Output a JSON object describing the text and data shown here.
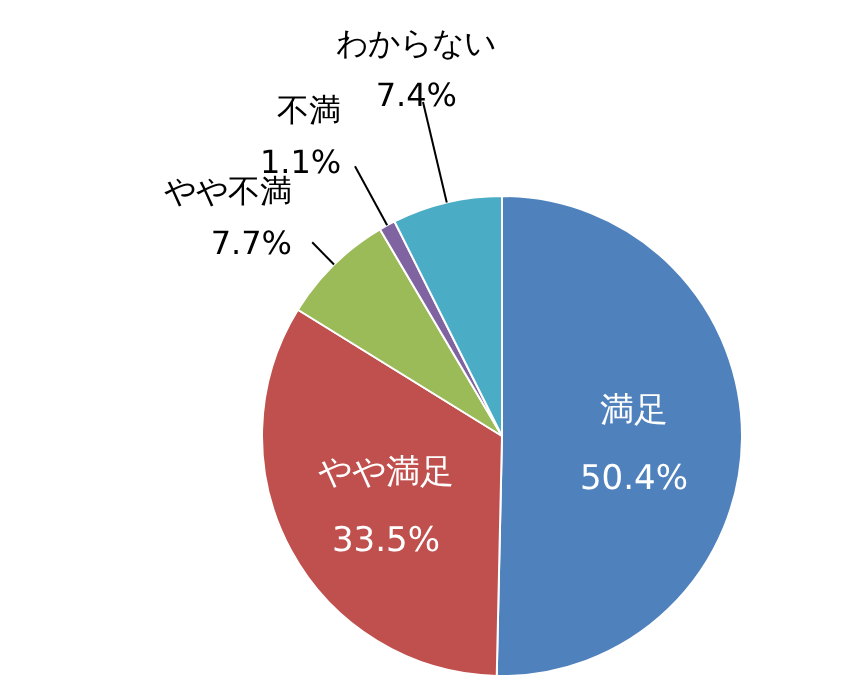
{
  "chart_data": {
    "type": "pie",
    "categories": [
      "満足",
      "やや満足",
      "やや不満",
      "不満",
      "わからない"
    ],
    "values": [
      50.4,
      33.5,
      7.7,
      1.1,
      7.4
    ],
    "colors": [
      "#4f81bd",
      "#c0504d",
      "#9bbb59",
      "#8064a2",
      "#4bacc6"
    ],
    "value_labels": [
      "50.4%",
      "33.5%",
      "7.7%",
      "1.1%",
      "7.4%"
    ],
    "legend": false
  }
}
